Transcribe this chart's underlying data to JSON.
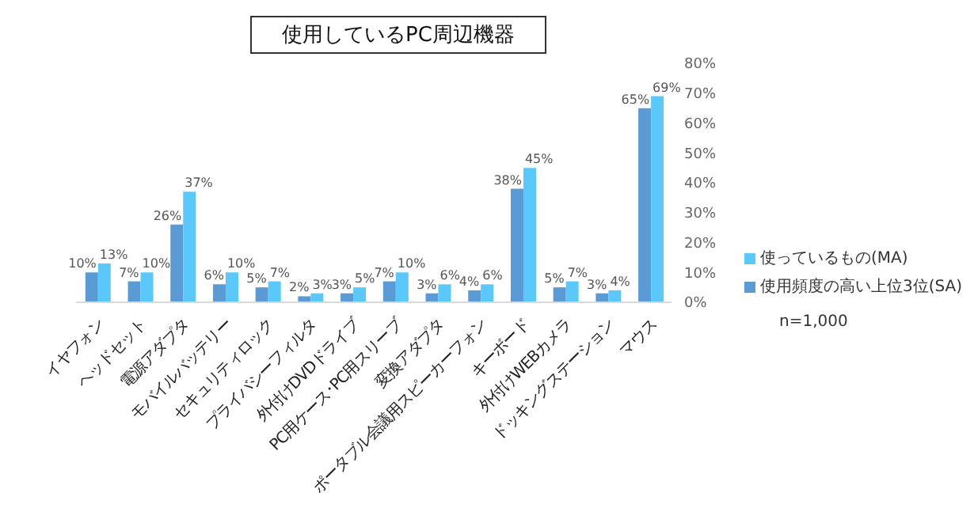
{
  "chart_data": {
    "type": "bar",
    "title": "使用しているPC周辺機器",
    "categories": [
      "イヤフォン",
      "ヘッドセット",
      "電源アダプタ",
      "モバイルバッテリー",
      "セキュリティロック",
      "プライバシーフィルタ",
      "外付けDVDドライブ",
      "PC用ケース･PC用スリーブ",
      "変換アダプタ",
      "ポータブル会議用スピーカーフォン",
      "キーボード",
      "外付けWEBカメラ",
      "ドッキングステーション",
      "マウス"
    ],
    "series": [
      {
        "name": "使用頻度の高い上位3位(SA)",
        "color": "#5b9bd5",
        "values": [
          10,
          7,
          26,
          6,
          5,
          2,
          3,
          7,
          3,
          4,
          38,
          5,
          3,
          65
        ],
        "value_labels": [
          "10%",
          "7%",
          "26%",
          "6%",
          "5%",
          "2%",
          "3%",
          "7%",
          "3%",
          "4%",
          "38%",
          "5%",
          "3%",
          "65%"
        ]
      },
      {
        "name": "使っているもの(MA)",
        "color": "#5bc8fb",
        "values": [
          13,
          10,
          37,
          10,
          7,
          3,
          5,
          10,
          6,
          6,
          45,
          7,
          4,
          69
        ],
        "value_labels": [
          "13%",
          "10%",
          "37%",
          "10%",
          "7%",
          "3%",
          "5%",
          "10%",
          "6%",
          "6%",
          "45%",
          "7%",
          "4%",
          "69%"
        ]
      }
    ],
    "ylim": [
      0,
      80
    ],
    "yticks": [
      {
        "value": 0,
        "label": "0%"
      },
      {
        "value": 10,
        "label": "10%"
      },
      {
        "value": 20,
        "label": "20%"
      },
      {
        "value": 30,
        "label": "30%"
      },
      {
        "value": 40,
        "label": "40%"
      },
      {
        "value": 50,
        "label": "50%"
      },
      {
        "value": 60,
        "label": "60%"
      },
      {
        "value": 70,
        "label": "70%"
      },
      {
        "value": 80,
        "label": "80%"
      }
    ],
    "legend": "right",
    "annotations": [
      "n=1,000"
    ]
  }
}
